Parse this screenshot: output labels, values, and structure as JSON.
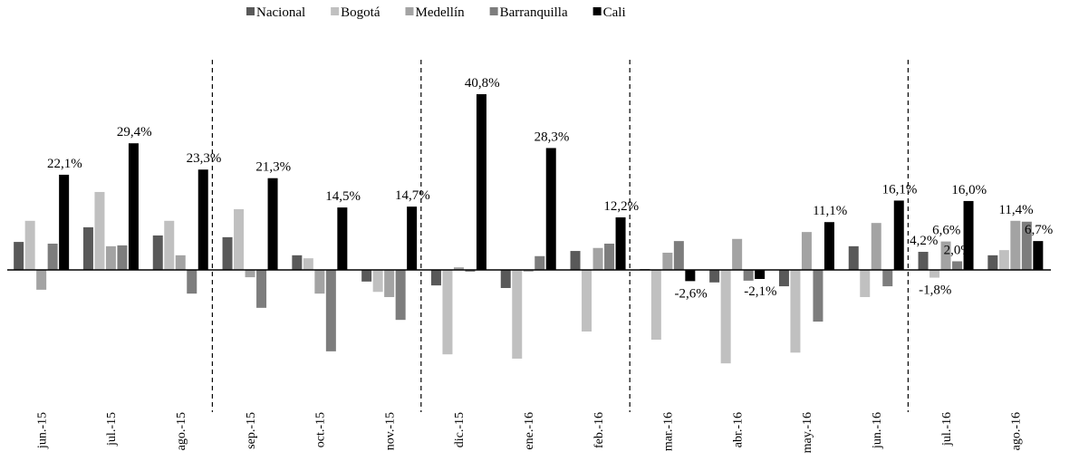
{
  "chart_data": {
    "type": "bar",
    "categories": [
      "jun.-15",
      "jul.-15",
      "ago.-15",
      "sep.-15",
      "oct.-15",
      "nov.-15",
      "dic.-15",
      "ene.-16",
      "feb.-16",
      "mar.-16",
      "abr.-16",
      "may.-16",
      "jun.-16",
      "jul.-16",
      "ago.-16"
    ],
    "series": [
      {
        "name": "Nacional",
        "color": "#595959",
        "values": [
          6.5,
          9.9,
          8.0,
          7.6,
          3.4,
          -2.7,
          -3.6,
          -4.2,
          4.4,
          0.2,
          -2.9,
          -3.8,
          5.5,
          4.2,
          3.4
        ],
        "value_labels": [
          null,
          null,
          null,
          null,
          null,
          null,
          null,
          null,
          null,
          null,
          null,
          null,
          null,
          "4,2%",
          null
        ]
      },
      {
        "name": "Bogotá",
        "color": "#c0c0c0",
        "values": [
          11.4,
          18.1,
          11.4,
          14.1,
          2.7,
          -5.1,
          -19.6,
          -20.6,
          -14.3,
          -16.2,
          -21.7,
          -19.2,
          -6.3,
          -1.8,
          4.6
        ],
        "value_labels": [
          null,
          null,
          null,
          null,
          null,
          null,
          null,
          null,
          null,
          null,
          null,
          null,
          null,
          "-1,8%",
          null
        ]
      },
      {
        "name": "Medellín",
        "color": "#a3a3a3",
        "values": [
          -4.6,
          5.5,
          3.4,
          -1.7,
          -5.5,
          -6.3,
          0.6,
          -0.4,
          5.1,
          4.0,
          7.2,
          8.8,
          10.9,
          6.6,
          11.4
        ],
        "value_labels": [
          null,
          null,
          null,
          null,
          null,
          null,
          null,
          null,
          null,
          null,
          null,
          null,
          null,
          "6,6%",
          "11,4%"
        ]
      },
      {
        "name": "Barranquilla",
        "color": "#7d7d7d",
        "values": [
          6.1,
          5.7,
          -5.5,
          -8.8,
          -18.9,
          -11.6,
          -0.4,
          3.2,
          6.1,
          6.7,
          -2.5,
          -12.0,
          -3.8,
          2.0,
          11.2
        ],
        "value_labels": [
          null,
          null,
          null,
          null,
          null,
          null,
          null,
          null,
          null,
          null,
          null,
          null,
          null,
          "2,0%",
          null
        ]
      },
      {
        "name": "Cali",
        "color": "#000000",
        "values": [
          22.1,
          29.4,
          23.3,
          21.3,
          14.5,
          14.7,
          40.8,
          28.3,
          12.2,
          -2.6,
          -2.1,
          11.1,
          16.1,
          16.0,
          6.7
        ],
        "value_labels": [
          "22,1%",
          "29,4%",
          "23,3%",
          "21,3%",
          "14,5%",
          "14,7%",
          "40,8%",
          "28,3%",
          "12,2%",
          "-2,6%",
          "-2,1%",
          "11,1%",
          "16,1%",
          "16,0%",
          "6,7%"
        ]
      }
    ]
  }
}
